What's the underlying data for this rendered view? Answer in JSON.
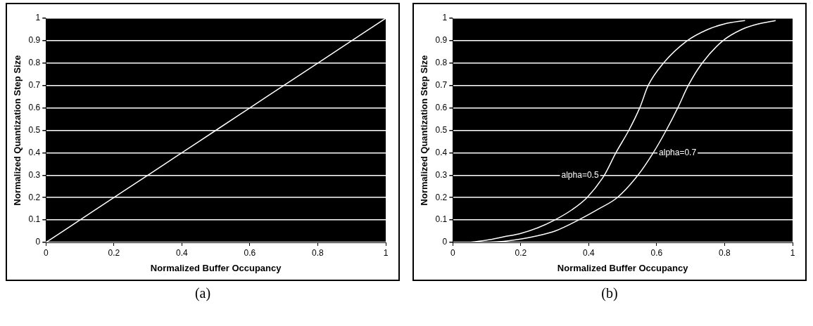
{
  "chart_data": [
    {
      "type": "line",
      "xlabel": "Normalized Buffer Occupancy",
      "ylabel": "Normalized Quantization Step Size",
      "xlim": [
        0,
        1
      ],
      "ylim": [
        0,
        1
      ],
      "xticks": [
        0,
        0.2,
        0.4,
        0.6,
        0.8,
        1
      ],
      "yticks": [
        0,
        0.1,
        0.2,
        0.3,
        0.4,
        0.5,
        0.6,
        0.7,
        0.8,
        0.9,
        1
      ],
      "grid": "y",
      "legend": false,
      "annotations": [
        "(a)"
      ],
      "series": [
        {
          "color": "#ffffff",
          "x": [
            0,
            0.1,
            0.2,
            0.3,
            0.4,
            0.5,
            0.6,
            0.7,
            0.8,
            0.9,
            1
          ],
          "values": [
            0,
            0.1,
            0.2,
            0.3,
            0.4,
            0.5,
            0.6,
            0.7,
            0.8,
            0.9,
            1
          ]
        }
      ]
    },
    {
      "type": "line",
      "xlabel": "Normalized Buffer Occupancy",
      "ylabel": "Normalized Quantization Step Size",
      "xlim": [
        0,
        1
      ],
      "ylim": [
        0,
        1
      ],
      "xticks": [
        0,
        0.2,
        0.4,
        0.6,
        0.8,
        1
      ],
      "yticks": [
        0,
        0.1,
        0.2,
        0.3,
        0.4,
        0.5,
        0.6,
        0.7,
        0.8,
        0.9,
        1
      ],
      "grid": "y",
      "legend": false,
      "annotations": [
        "(b)"
      ],
      "series": [
        {
          "name": "alpha=0.5",
          "color": "#ffffff",
          "x": [
            0.05,
            0.1,
            0.15,
            0.2,
            0.25,
            0.3,
            0.35,
            0.395,
            0.446,
            0.48,
            0.518,
            0.55,
            0.575,
            0.62,
            0.69,
            0.75,
            0.8,
            0.86
          ],
          "values": [
            0,
            0.01,
            0.025,
            0.04,
            0.065,
            0.1,
            0.145,
            0.2,
            0.3,
            0.4,
            0.5,
            0.6,
            0.7,
            0.8,
            0.9,
            0.95,
            0.975,
            0.99
          ]
        },
        {
          "name": "alpha=0.7",
          "color": "#ffffff",
          "x": [
            0.1,
            0.15,
            0.2,
            0.25,
            0.3,
            0.37,
            0.43,
            0.484,
            0.545,
            0.59,
            0.628,
            0.662,
            0.693,
            0.734,
            0.795,
            0.85,
            0.9,
            0.95
          ],
          "values": [
            0,
            0.005,
            0.015,
            0.03,
            0.05,
            0.1,
            0.15,
            0.2,
            0.3,
            0.4,
            0.5,
            0.6,
            0.7,
            0.8,
            0.9,
            0.95,
            0.975,
            0.99
          ]
        }
      ]
    }
  ]
}
